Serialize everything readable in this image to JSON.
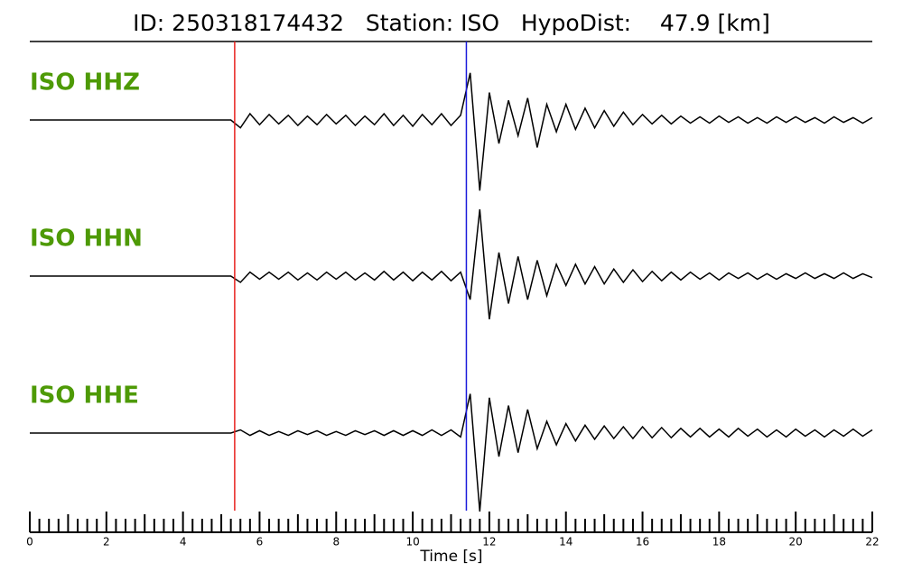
{
  "chart_data": {
    "type": "line",
    "title": "ID: 250318174432   Station: ISO   HypoDist:    47.9 [km]",
    "x_label": "Time [s]",
    "xlim": [
      0,
      22
    ],
    "xticks": [
      0,
      2,
      4,
      6,
      8,
      10,
      12,
      14,
      16,
      18,
      20,
      22
    ],
    "ylim": [
      -1,
      1
    ],
    "label_color": "#4e9a06",
    "x": [
      0,
      0.25,
      0.5,
      0.75,
      1,
      1.25,
      1.5,
      1.75,
      2,
      2.25,
      2.5,
      2.75,
      3,
      3.25,
      3.5,
      3.75,
      4,
      4.25,
      4.5,
      4.75,
      5,
      5.25,
      5.5,
      5.75,
      6,
      6.25,
      6.5,
      6.75,
      7,
      7.25,
      7.5,
      7.75,
      8,
      8.25,
      8.5,
      8.75,
      9,
      9.25,
      9.5,
      9.75,
      10,
      10.25,
      10.5,
      10.75,
      11,
      11.25,
      11.5,
      11.75,
      12,
      12.25,
      12.5,
      12.75,
      13,
      13.25,
      13.5,
      13.75,
      14,
      14.25,
      14.5,
      14.75,
      15,
      15.25,
      15.5,
      15.75,
      16,
      16.25,
      16.5,
      16.75,
      17,
      17.25,
      17.5,
      17.75,
      18,
      18.25,
      18.5,
      18.75,
      19,
      19.25,
      19.5,
      19.75,
      20,
      20.25,
      20.5,
      20.75,
      21,
      21.25,
      21.5,
      21.75,
      22
    ],
    "series": [
      {
        "name": "ISO HHZ",
        "color": "#000000",
        "values": [
          0,
          0,
          0,
          0,
          0,
          0,
          0,
          0,
          0,
          0,
          0,
          0,
          0,
          0,
          0,
          0,
          0,
          0,
          0,
          0,
          0,
          0,
          -0.1,
          0.08,
          -0.06,
          0.07,
          -0.05,
          0.06,
          -0.07,
          0.05,
          -0.06,
          0.07,
          -0.05,
          0.06,
          -0.07,
          0.05,
          -0.06,
          0.08,
          -0.07,
          0.06,
          -0.08,
          0.07,
          -0.06,
          0.08,
          -0.07,
          0.06,
          0.6,
          -0.9,
          0.35,
          -0.3,
          0.25,
          -0.2,
          0.28,
          -0.35,
          0.2,
          -0.15,
          0.2,
          -0.12,
          0.15,
          -0.1,
          0.12,
          -0.08,
          0.1,
          -0.06,
          0.07,
          -0.05,
          0.06,
          -0.05,
          0.05,
          -0.04,
          0.04,
          -0.04,
          0.05,
          -0.03,
          0.04,
          -0.04,
          0.03,
          -0.04,
          0.04,
          -0.03,
          0.04,
          -0.03,
          0.03,
          -0.04,
          0.04,
          -0.03,
          0.03,
          -0.04,
          0.03
        ]
      },
      {
        "name": "ISO HHN",
        "color": "#000000",
        "values": [
          0,
          0,
          0,
          0,
          0,
          0,
          0,
          0,
          0,
          0,
          0,
          0,
          0,
          0,
          0,
          0,
          0,
          0,
          0,
          0,
          0,
          0,
          -0.08,
          0.05,
          -0.04,
          0.05,
          -0.04,
          0.05,
          -0.05,
          0.04,
          -0.05,
          0.05,
          -0.04,
          0.05,
          -0.05,
          0.04,
          -0.05,
          0.06,
          -0.05,
          0.05,
          -0.06,
          0.05,
          -0.05,
          0.06,
          -0.06,
          0.05,
          -0.3,
          0.85,
          -0.55,
          0.3,
          -0.35,
          0.25,
          -0.3,
          0.2,
          -0.25,
          0.15,
          -0.12,
          0.15,
          -0.1,
          0.12,
          -0.1,
          0.09,
          -0.08,
          0.08,
          -0.07,
          0.06,
          -0.06,
          0.05,
          -0.05,
          0.05,
          -0.04,
          0.04,
          -0.05,
          0.04,
          -0.03,
          0.04,
          -0.04,
          0.03,
          -0.04,
          0.03,
          -0.03,
          0.04,
          -0.03,
          0.03,
          -0.03,
          0.04,
          -0.03,
          0.03,
          -0.02
        ]
      },
      {
        "name": "ISO HHE",
        "color": "#000000",
        "values": [
          0,
          0,
          0,
          0,
          0,
          0,
          0,
          0,
          0,
          0,
          0,
          0,
          0,
          0,
          0,
          0,
          0,
          0,
          0,
          0,
          0,
          0,
          0.04,
          -0.03,
          0.03,
          -0.03,
          0.02,
          -0.03,
          0.03,
          -0.02,
          0.03,
          -0.03,
          0.02,
          -0.03,
          0.03,
          -0.02,
          0.03,
          -0.03,
          0.03,
          -0.03,
          0.03,
          -0.03,
          0.04,
          -0.03,
          0.04,
          -0.05,
          0.5,
          -1.0,
          0.45,
          -0.3,
          0.35,
          -0.25,
          0.3,
          -0.2,
          0.15,
          -0.15,
          0.12,
          -0.1,
          0.1,
          -0.08,
          0.09,
          -0.07,
          0.08,
          -0.07,
          0.08,
          -0.06,
          0.07,
          -0.06,
          0.06,
          -0.05,
          0.06,
          -0.05,
          0.05,
          -0.05,
          0.06,
          -0.04,
          0.05,
          -0.05,
          0.04,
          -0.05,
          0.05,
          -0.04,
          0.04,
          -0.05,
          0.04,
          -0.04,
          0.05,
          -0.04,
          0.04
        ]
      }
    ],
    "markers": [
      {
        "x": 5.35,
        "color": "#e8211e"
      },
      {
        "x": 11.4,
        "color": "#1a1adb"
      }
    ]
  }
}
